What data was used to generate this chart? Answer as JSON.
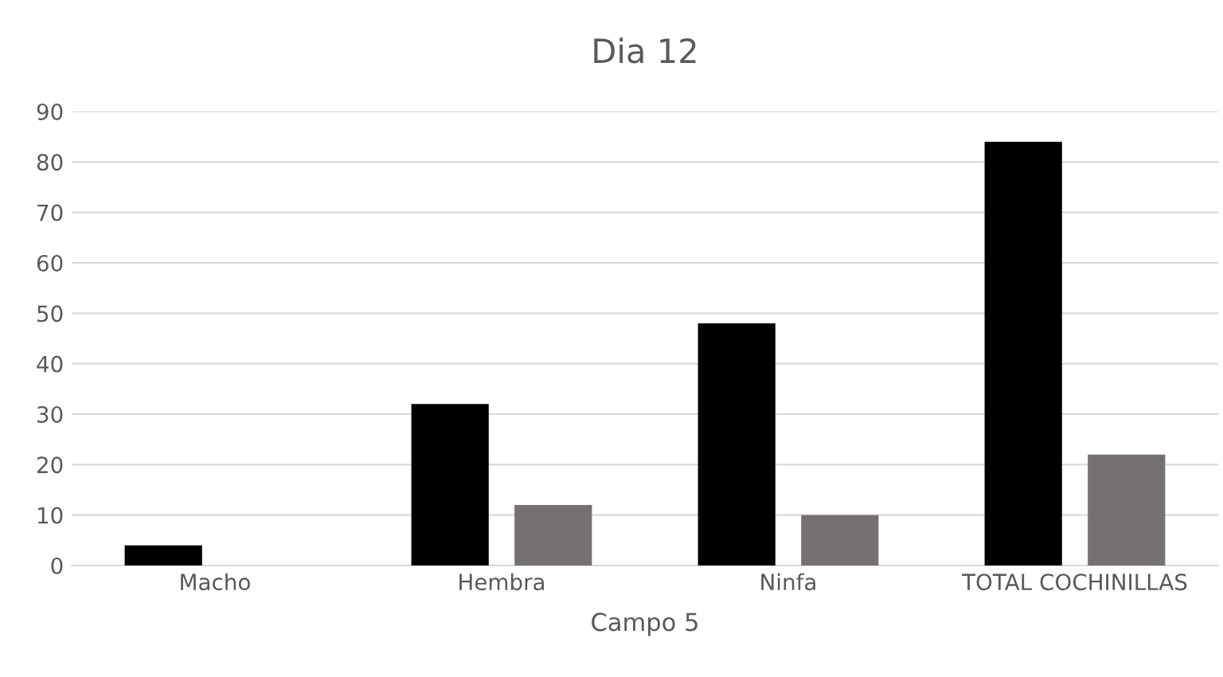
{
  "chart_data": {
    "type": "bar",
    "title": "Dia 12",
    "xlabel": "Campo 5",
    "categories": [
      "Macho",
      "Hembra",
      "Ninfa",
      "TOTAL COCHINILLAS"
    ],
    "series": [
      {
        "color": "#000000",
        "values": [
          4,
          32,
          48,
          84
        ]
      },
      {
        "color": "#767171",
        "values": [
          0,
          12,
          10,
          22
        ]
      }
    ],
    "ylim": [
      0,
      90
    ],
    "yticks": [
      0,
      10,
      20,
      30,
      40,
      50,
      60,
      70,
      80,
      90
    ],
    "grid": "y",
    "legend": false
  }
}
